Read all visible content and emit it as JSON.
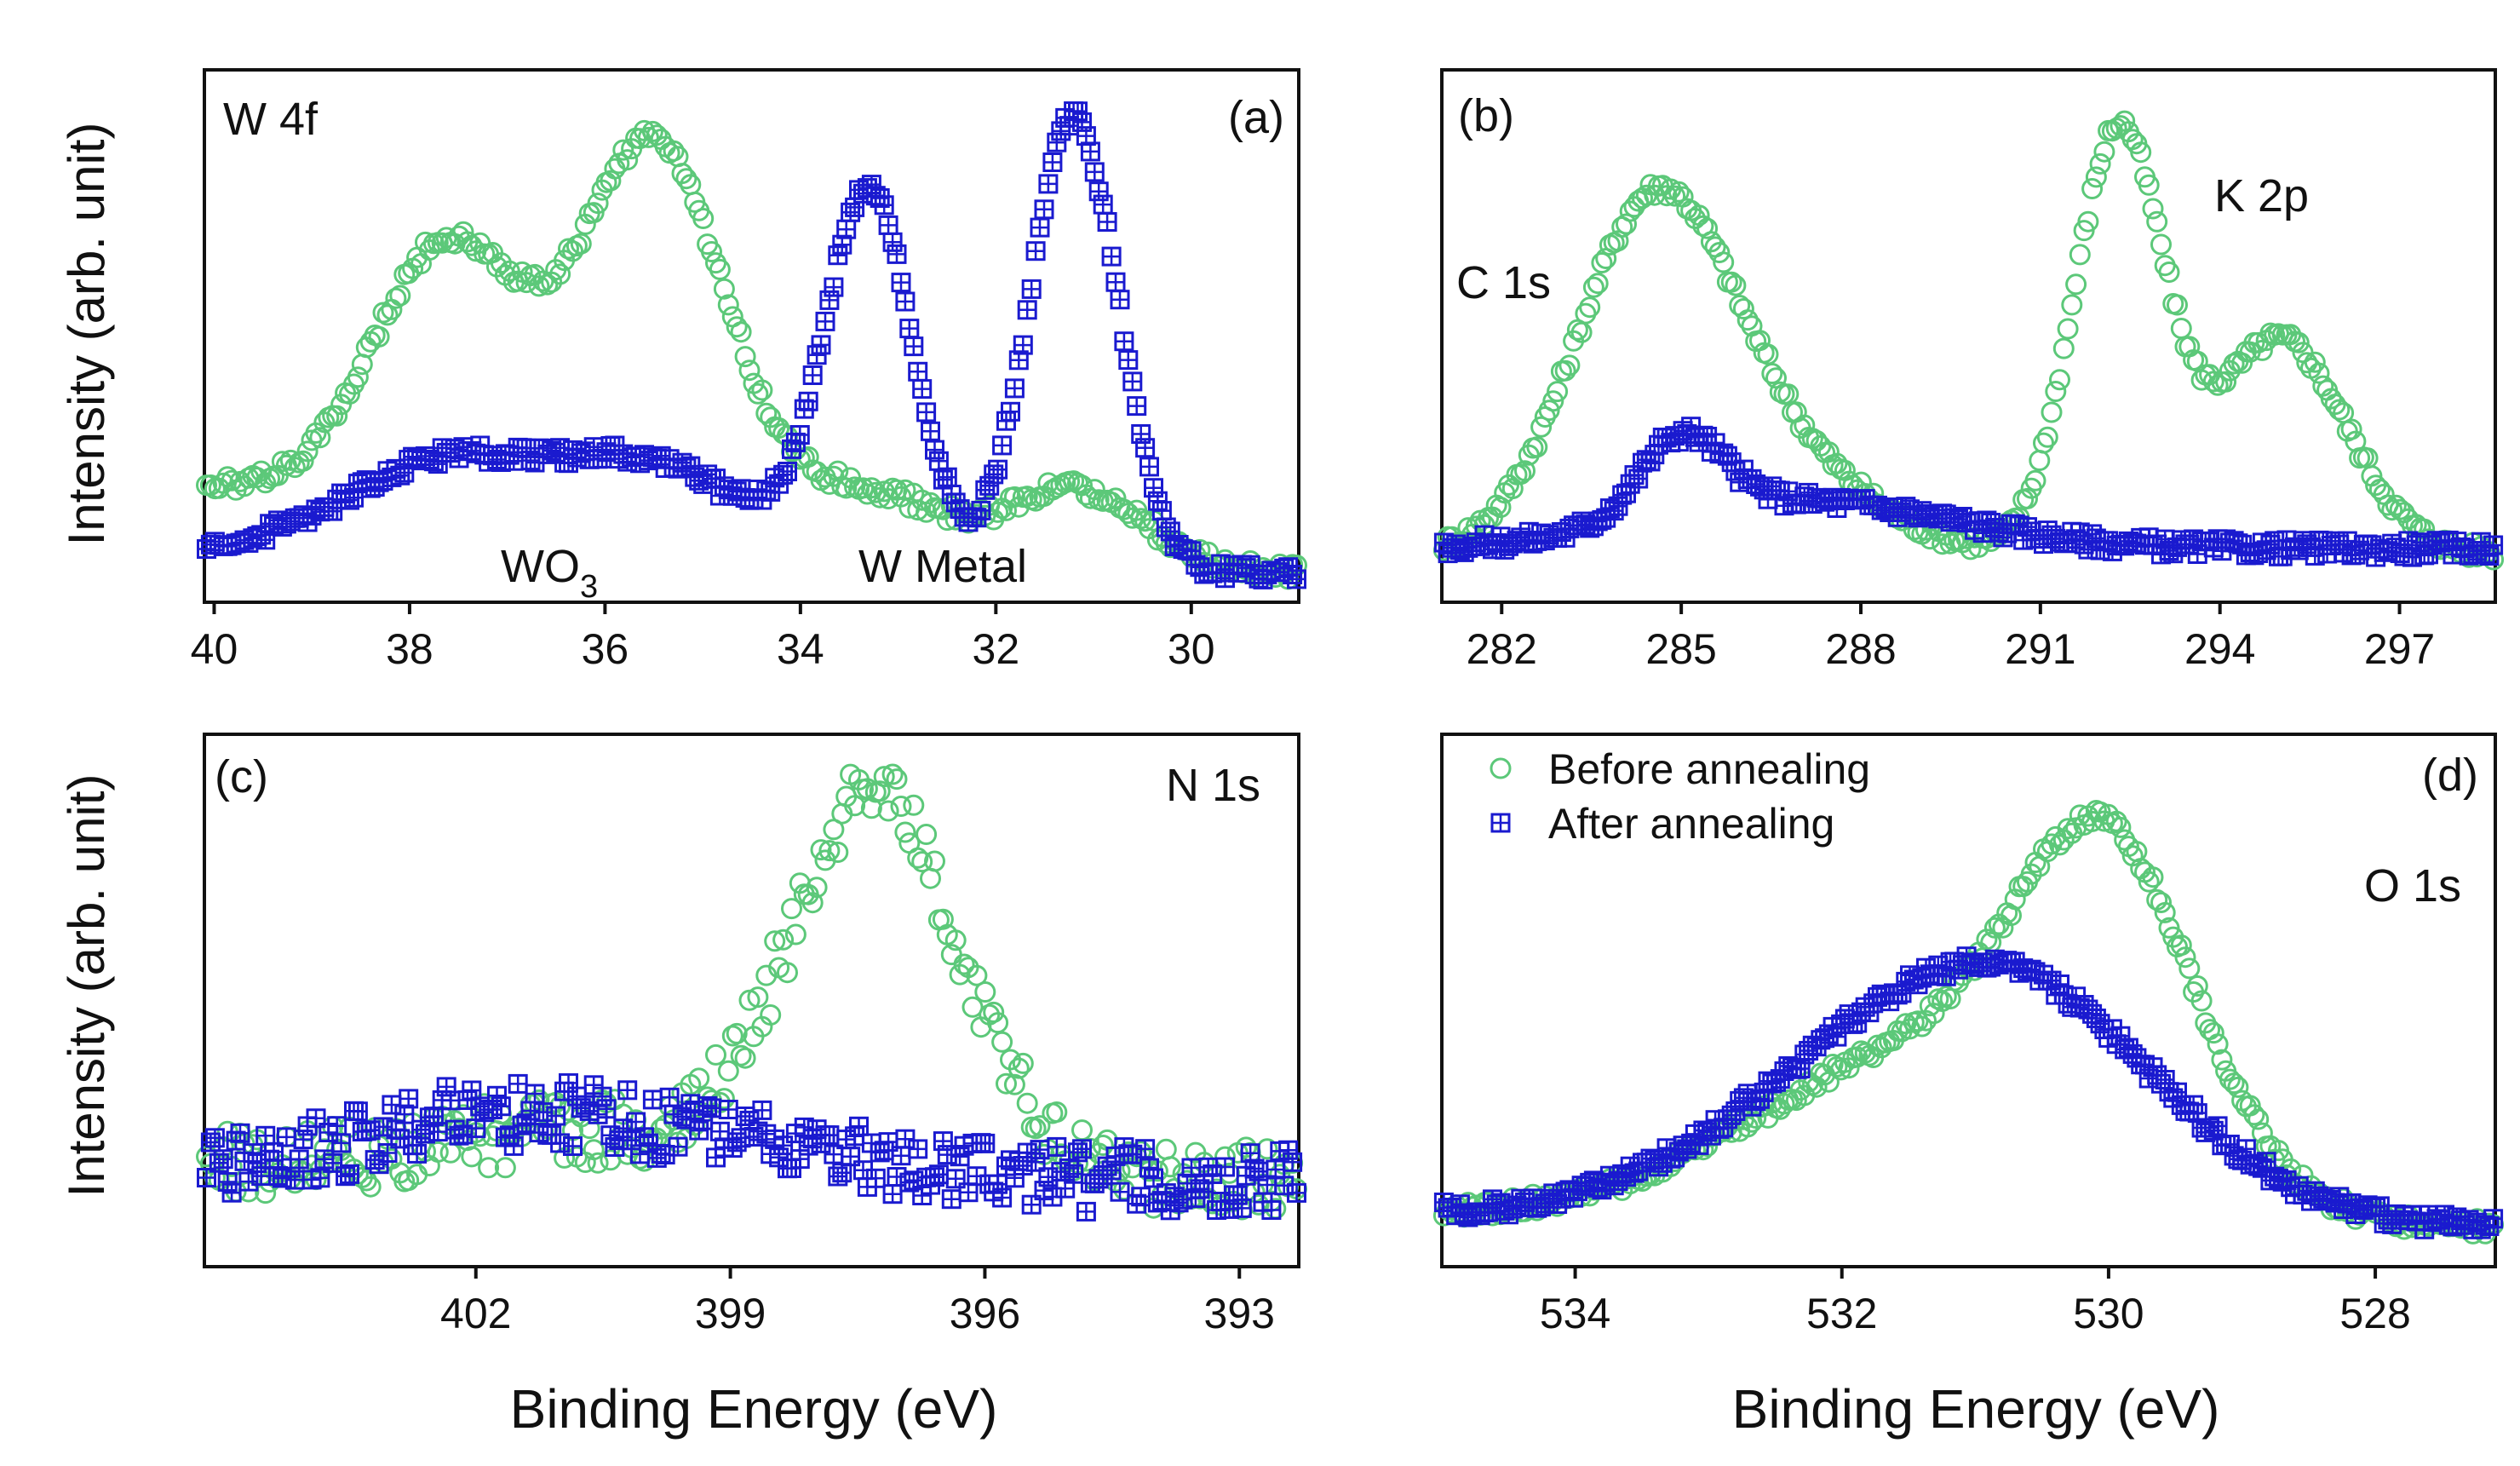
{
  "colors": {
    "before": "#5cc879",
    "after": "#1a1acf"
  },
  "figure": {
    "ylabel": "Intensity (arb. unit)",
    "xlabel": "Binding Energy (eV)"
  },
  "legend": {
    "before": "Before annealing",
    "after": "After annealing"
  },
  "chart_data": [
    {
      "panel": "(a)",
      "type": "scatter",
      "title": "W 4f",
      "annotations": {
        "wo3_main": "WO",
        "wo3_sub": "3",
        "wmetal": "W Metal"
      },
      "xlim": [
        40.1,
        28.9
      ],
      "ylim": [
        0,
        1.0
      ],
      "ticks": [
        40,
        38,
        36,
        34,
        32,
        30
      ],
      "tick_labels": [
        "40",
        "38",
        "36",
        "34",
        "32",
        "30"
      ],
      "series": [
        {
          "name": "Before annealing",
          "peaks": [
            [
              0.15,
              40,
              3
            ],
            [
              0.55,
              37.6,
              0.75
            ],
            [
              0.82,
              35.5,
              0.75
            ],
            [
              0.13,
              33.3,
              0.7
            ],
            [
              0.16,
              31.2,
              0.7
            ]
          ],
          "baseline": [
            [
              40,
              0.03
            ],
            [
              34,
              0.03
            ],
            [
              29,
              0.0
            ]
          ]
        },
        {
          "name": "After annealing",
          "peaks": [
            [
              0.06,
              40,
              4
            ],
            [
              0.17,
              37.7,
              0.9
            ],
            [
              0.2,
              35.6,
              1.0
            ],
            [
              0.78,
              33.3,
              0.45
            ],
            [
              0.95,
              31.2,
              0.45
            ]
          ],
          "baseline": [
            [
              40,
              0.0
            ],
            [
              34,
              0.0
            ],
            [
              29,
              0.0
            ]
          ]
        }
      ]
    },
    {
      "panel": "(b)",
      "type": "scatter",
      "title": "",
      "annotations": {
        "c1s": "C 1s",
        "k2p": "K 2p"
      },
      "xlim": [
        281.0,
        298.6
      ],
      "ylim": [
        0,
        1.0
      ],
      "ticks": [
        282,
        285,
        288,
        291,
        294,
        297
      ],
      "tick_labels": [
        "282",
        "285",
        "288",
        "291",
        "294",
        "297"
      ],
      "series": [
        {
          "name": "Before annealing",
          "peaks": [
            [
              0.68,
              284.5,
              1.3
            ],
            [
              0.18,
              286.5,
              1.6
            ],
            [
              0.88,
              292.3,
              0.75
            ],
            [
              0.45,
              295,
              1.1
            ]
          ],
          "baseline": [
            [
              281,
              0.04
            ],
            [
              298.6,
              0.04
            ]
          ]
        },
        {
          "name": "After annealing",
          "peaks": [
            [
              0.17,
              285,
              0.7
            ],
            [
              0.1,
              287,
              2.5
            ]
          ],
          "baseline": [
            [
              281,
              0.05
            ],
            [
              298.6,
              0.05
            ]
          ]
        }
      ]
    },
    {
      "panel": "(c)",
      "type": "scatter",
      "title": "N 1s",
      "annotations": {},
      "xlim": [
        405.2,
        392.3
      ],
      "ylim": [
        0,
        1.0
      ],
      "ticks": [
        402,
        399,
        396,
        393
      ],
      "tick_labels": [
        "402",
        "399",
        "396",
        "393"
      ],
      "series": [
        {
          "name": "Before annealing",
          "peaks": [
            [
              0.08,
              401,
              1.5
            ],
            [
              0.8,
              397.3,
              1.0
            ]
          ],
          "baseline": [
            [
              405.2,
              0.15
            ],
            [
              392.3,
              0.12
            ]
          ]
        },
        {
          "name": "After annealing",
          "peaks": [
            [
              0.13,
              401.5,
              1.8
            ],
            [
              0.04,
              398.5,
              1.2
            ]
          ],
          "baseline": [
            [
              405.2,
              0.13
            ],
            [
              392.3,
              0.12
            ]
          ]
        }
      ]
    },
    {
      "panel": "(d)",
      "type": "scatter",
      "title": "O 1s",
      "annotations": {},
      "xlim": [
        535.0,
        527.1
      ],
      "ylim": [
        0,
        1.0
      ],
      "ticks": [
        534,
        532,
        530,
        528
      ],
      "tick_labels": [
        "534",
        "532",
        "530",
        "528"
      ],
      "series": [
        {
          "name": "Before annealing",
          "peaks": [
            [
              0.62,
              530,
              0.65
            ],
            [
              0.36,
              531.3,
              1.3
            ]
          ],
          "baseline": [
            [
              535,
              0.05
            ],
            [
              527.1,
              0.02
            ]
          ]
        },
        {
          "name": "After annealing",
          "peaks": [
            [
              0.5,
              530.8,
              1.15
            ],
            [
              0.12,
              532.4,
              1.0
            ]
          ],
          "baseline": [
            [
              535,
              0.05
            ],
            [
              527.1,
              0.02
            ]
          ]
        }
      ]
    }
  ]
}
